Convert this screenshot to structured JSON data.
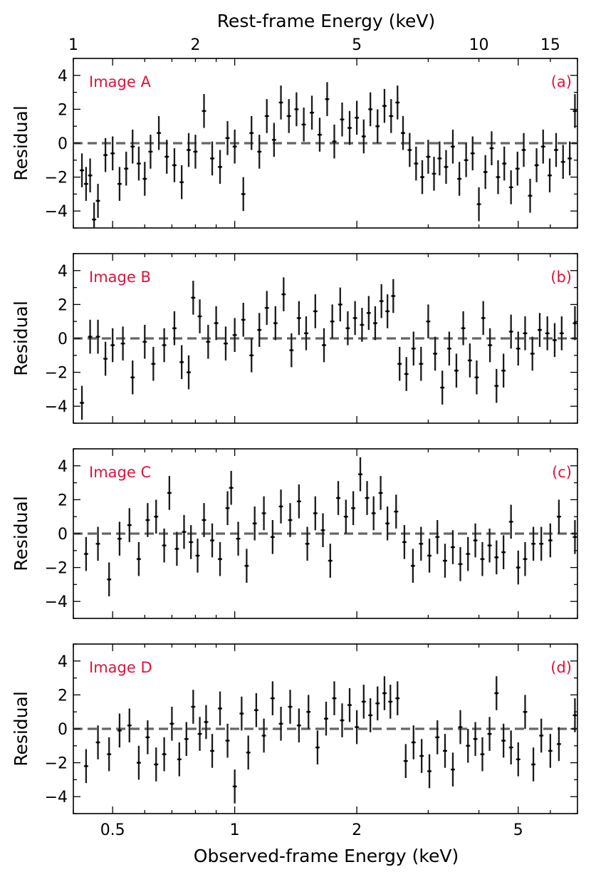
{
  "chart_data": {
    "type": "scatter",
    "x_scale": "log",
    "xlim": [
      0.4,
      7.0
    ],
    "ylim": [
      -5,
      5
    ],
    "xlabel": "Observed-frame Energy (keV)",
    "top_xlabel": "Rest-frame Energy (keV)",
    "ylabel": "Residual",
    "x_ticks": [
      {
        "value": 0.5,
        "label": "0.5"
      },
      {
        "value": 1,
        "label": "1"
      },
      {
        "value": 2,
        "label": "2"
      },
      {
        "value": 5,
        "label": "5"
      }
    ],
    "top_ticks": [
      {
        "value": 0.4,
        "label": "1"
      },
      {
        "value": 0.8,
        "label": "2"
      },
      {
        "value": 2,
        "label": "5"
      },
      {
        "value": 4,
        "label": "10"
      },
      {
        "value": 6,
        "label": "15"
      }
    ],
    "y_ticks": [
      {
        "value": 4,
        "label": "4"
      },
      {
        "value": 2,
        "label": "2"
      },
      {
        "value": 0,
        "label": "0"
      },
      {
        "value": -2,
        "label": "−2"
      },
      {
        "value": -4,
        "label": "−4"
      }
    ],
    "reference_line": 0,
    "panels": [
      {
        "id": "a",
        "tag": "(a)",
        "name": "Image A",
        "points": [
          [
            0.42,
            -1.6
          ],
          [
            0.43,
            -2.4
          ],
          [
            0.44,
            -1.9
          ],
          [
            0.45,
            -4.5
          ],
          [
            0.46,
            -3.4
          ],
          [
            0.48,
            -0.7
          ],
          [
            0.5,
            -0.6
          ],
          [
            0.52,
            -2.4
          ],
          [
            0.54,
            -1.5
          ],
          [
            0.56,
            -0.2
          ],
          [
            0.58,
            -1.2
          ],
          [
            0.6,
            -2.1
          ],
          [
            0.62,
            -0.5
          ],
          [
            0.65,
            0.6
          ],
          [
            0.68,
            -0.8
          ],
          [
            0.71,
            -1.3
          ],
          [
            0.74,
            -2.3
          ],
          [
            0.77,
            -0.4
          ],
          [
            0.8,
            -0.5
          ],
          [
            0.84,
            1.9
          ],
          [
            0.88,
            -0.9
          ],
          [
            0.92,
            -1.4
          ],
          [
            0.96,
            0.3
          ],
          [
            1.0,
            -0.2
          ],
          [
            1.05,
            -3.0
          ],
          [
            1.1,
            0.6
          ],
          [
            1.15,
            -0.5
          ],
          [
            1.2,
            1.6
          ],
          [
            1.25,
            0.2
          ],
          [
            1.3,
            2.4
          ],
          [
            1.36,
            1.6
          ],
          [
            1.42,
            2.0
          ],
          [
            1.48,
            1.1
          ],
          [
            1.55,
            1.8
          ],
          [
            1.62,
            0.5
          ],
          [
            1.69,
            2.6
          ],
          [
            1.76,
            0.1
          ],
          [
            1.84,
            1.4
          ],
          [
            1.92,
            0.9
          ],
          [
            2.0,
            1.5
          ],
          [
            2.08,
            0.4
          ],
          [
            2.16,
            2.0
          ],
          [
            2.25,
            1.0
          ],
          [
            2.34,
            2.2
          ],
          [
            2.43,
            1.6
          ],
          [
            2.52,
            2.4
          ],
          [
            2.6,
            0.6
          ],
          [
            2.7,
            -0.4
          ],
          [
            2.8,
            -1.2
          ],
          [
            2.9,
            -2.0
          ],
          [
            3.0,
            -0.8
          ],
          [
            3.1,
            -1.8
          ],
          [
            3.2,
            -0.9
          ],
          [
            3.32,
            -1.4
          ],
          [
            3.45,
            -0.2
          ],
          [
            3.58,
            -2.1
          ],
          [
            3.72,
            -1.0
          ],
          [
            3.86,
            -0.6
          ],
          [
            4.0,
            -3.6
          ],
          [
            4.15,
            -1.7
          ],
          [
            4.3,
            -0.3
          ],
          [
            4.46,
            -2.0
          ],
          [
            4.62,
            -1.2
          ],
          [
            4.8,
            -2.6
          ],
          [
            4.98,
            -1.5
          ],
          [
            5.16,
            -0.4
          ],
          [
            5.35,
            -3.1
          ],
          [
            5.55,
            -1.3
          ],
          [
            5.76,
            -0.2
          ],
          [
            5.98,
            -1.9
          ],
          [
            6.2,
            -0.4
          ],
          [
            6.45,
            -1.1
          ],
          [
            6.7,
            -0.9
          ],
          [
            6.9,
            1.9
          ]
        ]
      },
      {
        "id": "b",
        "tag": "(b)",
        "name": "Image B",
        "points": [
          [
            0.42,
            -3.8
          ],
          [
            0.44,
            0.1
          ],
          [
            0.46,
            0.1
          ],
          [
            0.48,
            -1.2
          ],
          [
            0.5,
            -0.4
          ],
          [
            0.53,
            -0.3
          ],
          [
            0.56,
            -2.3
          ],
          [
            0.6,
            -0.2
          ],
          [
            0.63,
            -1.5
          ],
          [
            0.67,
            -0.4
          ],
          [
            0.71,
            0.6
          ],
          [
            0.74,
            -1.4
          ],
          [
            0.77,
            -2.0
          ],
          [
            0.79,
            2.4
          ],
          [
            0.82,
            1.3
          ],
          [
            0.86,
            -0.2
          ],
          [
            0.9,
            0.9
          ],
          [
            0.95,
            -0.3
          ],
          [
            1.0,
            0.2
          ],
          [
            1.05,
            1.1
          ],
          [
            1.1,
            -1.0
          ],
          [
            1.15,
            0.5
          ],
          [
            1.2,
            1.8
          ],
          [
            1.26,
            0.9
          ],
          [
            1.32,
            2.6
          ],
          [
            1.38,
            -0.7
          ],
          [
            1.44,
            1.2
          ],
          [
            1.5,
            0.3
          ],
          [
            1.58,
            1.6
          ],
          [
            1.66,
            -0.4
          ],
          [
            1.74,
            1.0
          ],
          [
            1.82,
            2.0
          ],
          [
            1.9,
            0.6
          ],
          [
            1.98,
            1.2
          ],
          [
            2.06,
            0.8
          ],
          [
            2.14,
            1.5
          ],
          [
            2.22,
            0.9
          ],
          [
            2.3,
            2.2
          ],
          [
            2.38,
            1.6
          ],
          [
            2.46,
            2.5
          ],
          [
            2.55,
            -1.5
          ],
          [
            2.65,
            -2.1
          ],
          [
            2.76,
            -0.6
          ],
          [
            2.88,
            -1.5
          ],
          [
            3.0,
            1.0
          ],
          [
            3.12,
            -0.9
          ],
          [
            3.25,
            -2.9
          ],
          [
            3.38,
            -0.6
          ],
          [
            3.52,
            -1.9
          ],
          [
            3.66,
            0.6
          ],
          [
            3.8,
            -1.3
          ],
          [
            3.95,
            -2.3
          ],
          [
            4.1,
            1.2
          ],
          [
            4.26,
            -0.4
          ],
          [
            4.42,
            -2.8
          ],
          [
            4.6,
            -1.9
          ],
          [
            4.8,
            0.4
          ],
          [
            5.0,
            -0.6
          ],
          [
            5.2,
            0.3
          ],
          [
            5.42,
            -0.9
          ],
          [
            5.65,
            0.5
          ],
          [
            5.9,
            0.3
          ],
          [
            6.15,
            -0.1
          ],
          [
            6.4,
            0.3
          ],
          [
            6.9,
            0.9
          ]
        ]
      },
      {
        "id": "c",
        "tag": "(c)",
        "name": "Image C",
        "points": [
          [
            0.43,
            -1.2
          ],
          [
            0.46,
            -0.6
          ],
          [
            0.49,
            -2.7
          ],
          [
            0.52,
            -0.3
          ],
          [
            0.55,
            0.5
          ],
          [
            0.58,
            -1.5
          ],
          [
            0.61,
            0.8
          ],
          [
            0.64,
            1.0
          ],
          [
            0.67,
            -0.7
          ],
          [
            0.69,
            2.4
          ],
          [
            0.72,
            -0.9
          ],
          [
            0.75,
            0.1
          ],
          [
            0.78,
            -0.5
          ],
          [
            0.81,
            -1.3
          ],
          [
            0.84,
            0.8
          ],
          [
            0.88,
            -0.4
          ],
          [
            0.92,
            -1.5
          ],
          [
            0.96,
            1.5
          ],
          [
            0.98,
            2.7
          ],
          [
            1.02,
            -0.3
          ],
          [
            1.07,
            -1.9
          ],
          [
            1.12,
            0.6
          ],
          [
            1.18,
            1.2
          ],
          [
            1.24,
            -0.2
          ],
          [
            1.3,
            1.6
          ],
          [
            1.37,
            0.8
          ],
          [
            1.44,
            1.9
          ],
          [
            1.51,
            -0.6
          ],
          [
            1.58,
            1.2
          ],
          [
            1.65,
            0.2
          ],
          [
            1.72,
            -1.6
          ],
          [
            1.8,
            2.1
          ],
          [
            1.88,
            1.0
          ],
          [
            1.96,
            1.5
          ],
          [
            2.04,
            3.5
          ],
          [
            2.12,
            2.1
          ],
          [
            2.2,
            1.2
          ],
          [
            2.29,
            2.4
          ],
          [
            2.38,
            0.6
          ],
          [
            2.5,
            1.3
          ],
          [
            2.62,
            -0.5
          ],
          [
            2.75,
            -1.9
          ],
          [
            2.88,
            -0.6
          ],
          [
            3.02,
            -1.3
          ],
          [
            3.16,
            -0.2
          ],
          [
            3.3,
            -1.6
          ],
          [
            3.45,
            -0.8
          ],
          [
            3.6,
            -1.8
          ],
          [
            3.76,
            -1.2
          ],
          [
            3.92,
            -0.4
          ],
          [
            4.08,
            -1.5
          ],
          [
            4.25,
            -0.7
          ],
          [
            4.42,
            -1.4
          ],
          [
            4.6,
            -1.1
          ],
          [
            4.8,
            0.7
          ],
          [
            5.0,
            -2.0
          ],
          [
            5.2,
            -1.5
          ],
          [
            5.45,
            -0.6
          ],
          [
            5.7,
            -0.6
          ],
          [
            6.0,
            -0.4
          ],
          [
            6.3,
            1.0
          ],
          [
            6.9,
            -0.2
          ]
        ]
      },
      {
        "id": "d",
        "tag": "(d)",
        "name": "Image D",
        "points": [
          [
            0.43,
            -2.2
          ],
          [
            0.46,
            -0.8
          ],
          [
            0.49,
            -1.5
          ],
          [
            0.52,
            -0.1
          ],
          [
            0.55,
            0.2
          ],
          [
            0.58,
            -2.0
          ],
          [
            0.61,
            -0.5
          ],
          [
            0.64,
            -2.1
          ],
          [
            0.67,
            -1.5
          ],
          [
            0.7,
            0.3
          ],
          [
            0.73,
            -1.8
          ],
          [
            0.76,
            -0.6
          ],
          [
            0.79,
            1.3
          ],
          [
            0.82,
            -0.3
          ],
          [
            0.85,
            0.4
          ],
          [
            0.88,
            -1.3
          ],
          [
            0.92,
            1.2
          ],
          [
            0.96,
            -0.7
          ],
          [
            1.0,
            -3.4
          ],
          [
            1.04,
            0.9
          ],
          [
            1.08,
            -1.4
          ],
          [
            1.13,
            1.1
          ],
          [
            1.18,
            -0.4
          ],
          [
            1.24,
            1.8
          ],
          [
            1.3,
            0.3
          ],
          [
            1.37,
            1.3
          ],
          [
            1.44,
            0.2
          ],
          [
            1.52,
            1.0
          ],
          [
            1.6,
            -1.1
          ],
          [
            1.68,
            0.6
          ],
          [
            1.76,
            1.8
          ],
          [
            1.84,
            0.5
          ],
          [
            1.92,
            1.4
          ],
          [
            2.0,
            0.1
          ],
          [
            2.08,
            1.6
          ],
          [
            2.16,
            0.8
          ],
          [
            2.25,
            1.5
          ],
          [
            2.34,
            2.1
          ],
          [
            2.42,
            1.6
          ],
          [
            2.52,
            1.8
          ],
          [
            2.64,
            -1.9
          ],
          [
            2.76,
            -0.8
          ],
          [
            2.89,
            -1.6
          ],
          [
            3.02,
            -2.5
          ],
          [
            3.16,
            -0.5
          ],
          [
            3.3,
            -1.3
          ],
          [
            3.45,
            -2.4
          ],
          [
            3.6,
            0.1
          ],
          [
            3.76,
            -1.0
          ],
          [
            3.92,
            -0.6
          ],
          [
            4.08,
            -1.5
          ],
          [
            4.25,
            -0.3
          ],
          [
            4.42,
            2.1
          ],
          [
            4.6,
            -0.7
          ],
          [
            4.8,
            -1.1
          ],
          [
            5.0,
            -1.8
          ],
          [
            5.2,
            1.0
          ],
          [
            5.45,
            -2.1
          ],
          [
            5.7,
            -0.4
          ],
          [
            6.0,
            -1.3
          ],
          [
            6.3,
            -0.9
          ],
          [
            6.9,
            0.8
          ]
        ]
      }
    ]
  }
}
